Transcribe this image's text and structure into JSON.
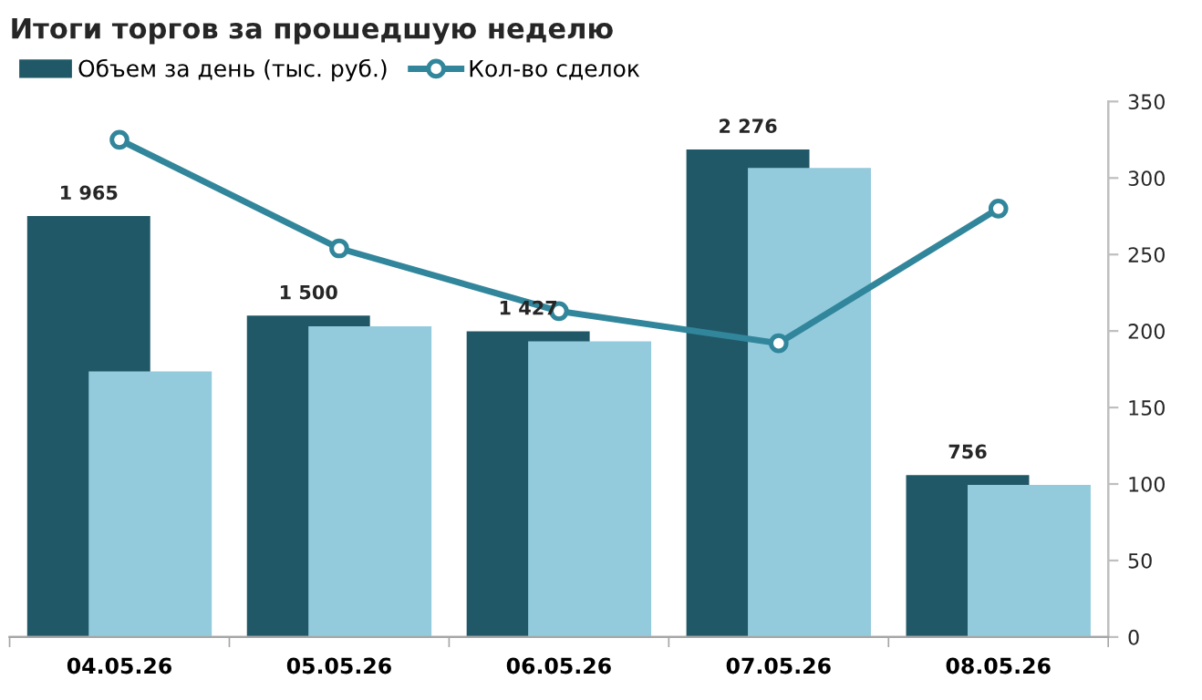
{
  "chart_data": {
    "type": "bar",
    "title": "Итоги торгов за прошедшую неделю",
    "categories": [
      "04.05.26",
      "05.05.26",
      "06.05.26",
      "07.05.26",
      "08.05.26"
    ],
    "series": [
      {
        "name": "Объем за день (тыс. руб.)",
        "color": "#215868",
        "values": [
          1965,
          1500,
          1427,
          2276,
          756
        ],
        "axis": "y2",
        "value_labels": [
          "1 965",
          "1 500",
          "1 427",
          "2 276",
          "756"
        ]
      },
      {
        "color": "#93cbdd",
        "values": [
          1240,
          1450,
          1380,
          2190,
          710
        ],
        "axis": "y2"
      },
      {
        "name": "Кол-во сделок",
        "type": "line",
        "color": "#31869b",
        "values": [
          325,
          254,
          213,
          192,
          280
        ],
        "axis": "y",
        "marker": "circle"
      }
    ],
    "ylim": [
      0,
      350
    ],
    "yticks": [
      0,
      50,
      100,
      150,
      200,
      250,
      300,
      350
    ],
    "y2lim": [
      0,
      2500
    ],
    "grid": false,
    "legend": "top left"
  }
}
